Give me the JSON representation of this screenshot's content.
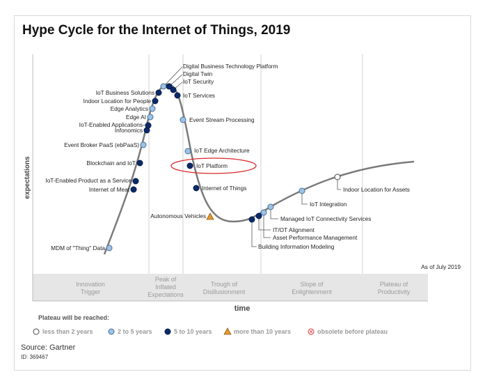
{
  "title": "Hype Cycle for the Internet of Things, 2019",
  "y_axis_label": "expectations",
  "x_axis_label": "time",
  "as_of": "As of July 2019",
  "phases": [
    "Innovation\nTrigger",
    "Peak of\nInflated\nExpectations",
    "Trough of\nDisillusionment",
    "Slope of\nEnlightenment",
    "Plateau of\nProductivity"
  ],
  "legend": {
    "title": "Plateau will be reached:",
    "items": [
      {
        "key": "lt2",
        "label": "less than 2 years",
        "color": "#ffffff"
      },
      {
        "key": "2to5",
        "label": "2 to 5 years",
        "color": "#9cc3e6"
      },
      {
        "key": "5to10",
        "label": "5 to 10 years",
        "color": "#0b2a6b"
      },
      {
        "key": "gt10",
        "label": "more than 10 years",
        "color": "#e69a2e"
      },
      {
        "key": "obsolete",
        "label": "obsolete before plateau",
        "color": "#e05a5a"
      }
    ]
  },
  "technologies": [
    {
      "name": "MDM of \"Thing\" Data",
      "plateau": "2to5"
    },
    {
      "name": "Internet of Meat",
      "plateau": "5to10"
    },
    {
      "name": "IoT-Enabled Product as a Service",
      "plateau": "5to10"
    },
    {
      "name": "Blockchain and IoT",
      "plateau": "5to10"
    },
    {
      "name": "Event Broker PaaS (ebPaaS)",
      "plateau": "2to5"
    },
    {
      "name": "Infonomics",
      "plateau": "5to10"
    },
    {
      "name": "IoT-Enabled Applications",
      "plateau": "5to10"
    },
    {
      "name": "Edge AI",
      "plateau": "2to5"
    },
    {
      "name": "Edge Analytics",
      "plateau": "2to5"
    },
    {
      "name": "Indoor Location for People",
      "plateau": "5to10"
    },
    {
      "name": "IoT Business Solutions",
      "plateau": "5to10"
    },
    {
      "name": "Digital Business Technology Platform",
      "plateau": "2to5"
    },
    {
      "name": "Digital Twin",
      "plateau": "5to10"
    },
    {
      "name": "IoT Security",
      "plateau": "5to10"
    },
    {
      "name": "IoT Services",
      "plateau": "5to10"
    },
    {
      "name": "Event Stream Processing",
      "plateau": "2to5"
    },
    {
      "name": "IoT Edge Architecture",
      "plateau": "2to5"
    },
    {
      "name": "IoT Platform",
      "plateau": "5to10",
      "highlighted": true
    },
    {
      "name": "Internet of Things",
      "plateau": "5to10"
    },
    {
      "name": "Autonomous Vehicles",
      "plateau": "gt10"
    },
    {
      "name": "Building Information Modeling",
      "plateau": "5to10"
    },
    {
      "name": "IT/OT Alignment",
      "plateau": "5to10"
    },
    {
      "name": "Asset Performance Management",
      "plateau": "2to5"
    },
    {
      "name": "Managed IoT Connectivity Services",
      "plateau": "2to5"
    },
    {
      "name": "IoT Integration",
      "plateau": "2to5"
    },
    {
      "name": "Indoor Location for Assets",
      "plateau": "lt2"
    }
  ],
  "highlight_color": "#d9262b",
  "source": "Source: Gartner",
  "id": "ID: 369467"
}
